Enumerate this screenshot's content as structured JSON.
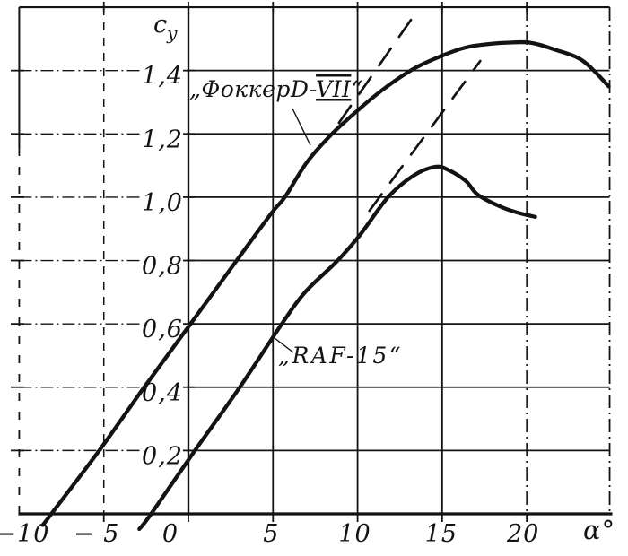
{
  "figure": {
    "background_color": "#ffffff",
    "ink_color": "#131313"
  },
  "chart_data": {
    "type": "line",
    "title": "",
    "xlabel": "α°",
    "ylabel": {
      "base": "c",
      "sub": "у"
    },
    "xlim": [
      -10,
      24.9
    ],
    "ylim": [
      0,
      1.6
    ],
    "grid": true,
    "legend_position": "inline-annotations",
    "x_ticks": {
      "values": [
        -10,
        -5,
        0,
        5,
        10,
        15,
        20
      ],
      "labels": [
        "−10",
        "− 5",
        "0",
        "5",
        "10",
        "15",
        "20"
      ]
    },
    "y_ticks": {
      "values": [
        0.2,
        0.4,
        0.6,
        0.8,
        1.0,
        1.2,
        1.4
      ],
      "labels": [
        "0,2",
        "0,4",
        "0,6",
        "0,8",
        "1,0",
        "1,2",
        "1,4"
      ]
    },
    "series": [
      {
        "id": "fokker",
        "name": "„ФоккерD-VII“",
        "label_parts": {
          "prefix": "„ФоккерD-",
          "roman": "VII",
          "suffix": "“"
        },
        "zero_lift_alpha": -8.1,
        "cy_max": 1.49,
        "alpha_at_cy_max": 19,
        "points_alpha_cy": [
          [
            -8.6,
            -0.035
          ],
          [
            -8.1,
            0.0
          ],
          [
            -5.3,
            0.198
          ],
          [
            -2.65,
            0.397
          ],
          [
            0.1,
            0.598
          ],
          [
            2.8,
            0.796
          ],
          [
            4.9,
            0.949
          ],
          [
            5.7,
            1.0
          ],
          [
            7.0,
            1.11
          ],
          [
            8.4,
            1.195
          ],
          [
            10.0,
            1.274
          ],
          [
            11.5,
            1.34
          ],
          [
            13.3,
            1.405
          ],
          [
            15.0,
            1.447
          ],
          [
            16.4,
            1.473
          ],
          [
            17.8,
            1.484
          ],
          [
            18.8,
            1.488
          ],
          [
            20.2,
            1.488
          ],
          [
            21.6,
            1.467
          ],
          [
            23.3,
            1.431
          ],
          [
            24.85,
            1.35
          ]
        ]
      },
      {
        "id": "raf",
        "name": "„RAF-15“",
        "label_parts": {
          "prefix": "„RAF-15“",
          "roman": "",
          "suffix": ""
        },
        "zero_lift_alpha": -2.2,
        "cy_max": 1.1,
        "alpha_at_cy_max": 14.6,
        "points_alpha_cy": [
          [
            -2.9,
            -0.048
          ],
          [
            -2.2,
            0.0
          ],
          [
            0.4,
            0.201
          ],
          [
            3.0,
            0.397
          ],
          [
            5.5,
            0.598
          ],
          [
            6.9,
            0.7
          ],
          [
            8.75,
            0.796
          ],
          [
            10.1,
            0.878
          ],
          [
            11.8,
            1.0
          ],
          [
            13.3,
            1.068
          ],
          [
            14.6,
            1.096
          ],
          [
            15.4,
            1.085
          ],
          [
            16.4,
            1.051
          ],
          [
            17.1,
            1.008
          ],
          [
            18.4,
            0.971
          ],
          [
            19.4,
            0.952
          ],
          [
            20.5,
            0.938
          ]
        ]
      }
    ],
    "dashed_extension_lines": [
      {
        "of_series": "fokker",
        "from_alpha_cy": [
          8.9,
          1.235
        ],
        "to_alpha_cy": [
          13.35,
          1.575
        ]
      },
      {
        "of_series": "raf",
        "from_alpha_cy": [
          10.7,
          0.957
        ],
        "to_alpha_cy": [
          17.25,
          1.43
        ]
      }
    ]
  }
}
